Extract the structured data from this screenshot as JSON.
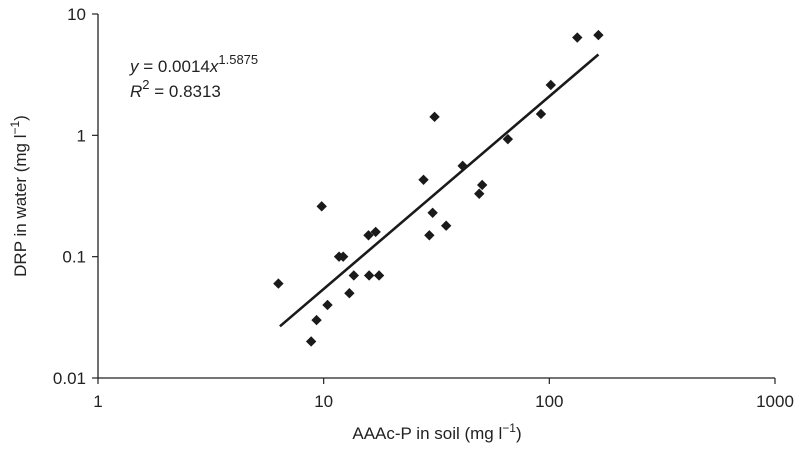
{
  "chart_data": {
    "type": "scatter",
    "xscale": "log",
    "yscale": "log",
    "xlim": [
      1,
      1000
    ],
    "ylim": [
      0.01,
      10
    ],
    "xlabel": "AAAc-P in soil (mg l",
    "xlabel_sup": "−1",
    "xlabel_end": ")",
    "ylabel": "DRP in water (mg l",
    "ylabel_sup": "−1",
    "ylabel_end": ")",
    "x_ticks": [
      1,
      10,
      100,
      1000
    ],
    "x_tick_labels": [
      "1",
      "10",
      "100",
      "1000"
    ],
    "y_ticks": [
      0.01,
      0.1,
      1,
      10
    ],
    "y_tick_labels": [
      "0.01",
      "0.1",
      "1",
      "10"
    ],
    "grid": false,
    "marker": "diamond",
    "marker_color": "#1a1a1a",
    "trendline": {
      "type": "power",
      "coef": 0.0014,
      "exponent": 1.5875,
      "x_range": [
        6.4,
        165
      ],
      "equation": {
        "y_italic": "y",
        "eq_mid": " = 0.0014",
        "x_italic": "x",
        "exp": "1.5875",
        "r_italic": "R",
        "r_sup": "2",
        "r_value": " = 0.8313"
      }
    },
    "points": [
      {
        "x": 6.3,
        "y": 0.06
      },
      {
        "x": 8.8,
        "y": 0.02
      },
      {
        "x": 9.3,
        "y": 0.03
      },
      {
        "x": 9.8,
        "y": 0.26
      },
      {
        "x": 10.4,
        "y": 0.04
      },
      {
        "x": 11.7,
        "y": 0.1
      },
      {
        "x": 12.2,
        "y": 0.1
      },
      {
        "x": 13.0,
        "y": 0.05
      },
      {
        "x": 13.6,
        "y": 0.07
      },
      {
        "x": 15.8,
        "y": 0.15
      },
      {
        "x": 15.9,
        "y": 0.07
      },
      {
        "x": 17.0,
        "y": 0.16
      },
      {
        "x": 17.6,
        "y": 0.07
      },
      {
        "x": 27.7,
        "y": 0.43
      },
      {
        "x": 29.4,
        "y": 0.15
      },
      {
        "x": 30.4,
        "y": 0.23
      },
      {
        "x": 31.0,
        "y": 1.42
      },
      {
        "x": 34.9,
        "y": 0.18
      },
      {
        "x": 41.3,
        "y": 0.56
      },
      {
        "x": 48.9,
        "y": 0.33
      },
      {
        "x": 50.4,
        "y": 0.39
      },
      {
        "x": 65.5,
        "y": 0.93
      },
      {
        "x": 91.8,
        "y": 1.5
      },
      {
        "x": 101.5,
        "y": 2.6
      },
      {
        "x": 133.0,
        "y": 6.4
      },
      {
        "x": 165.0,
        "y": 6.7
      }
    ]
  }
}
